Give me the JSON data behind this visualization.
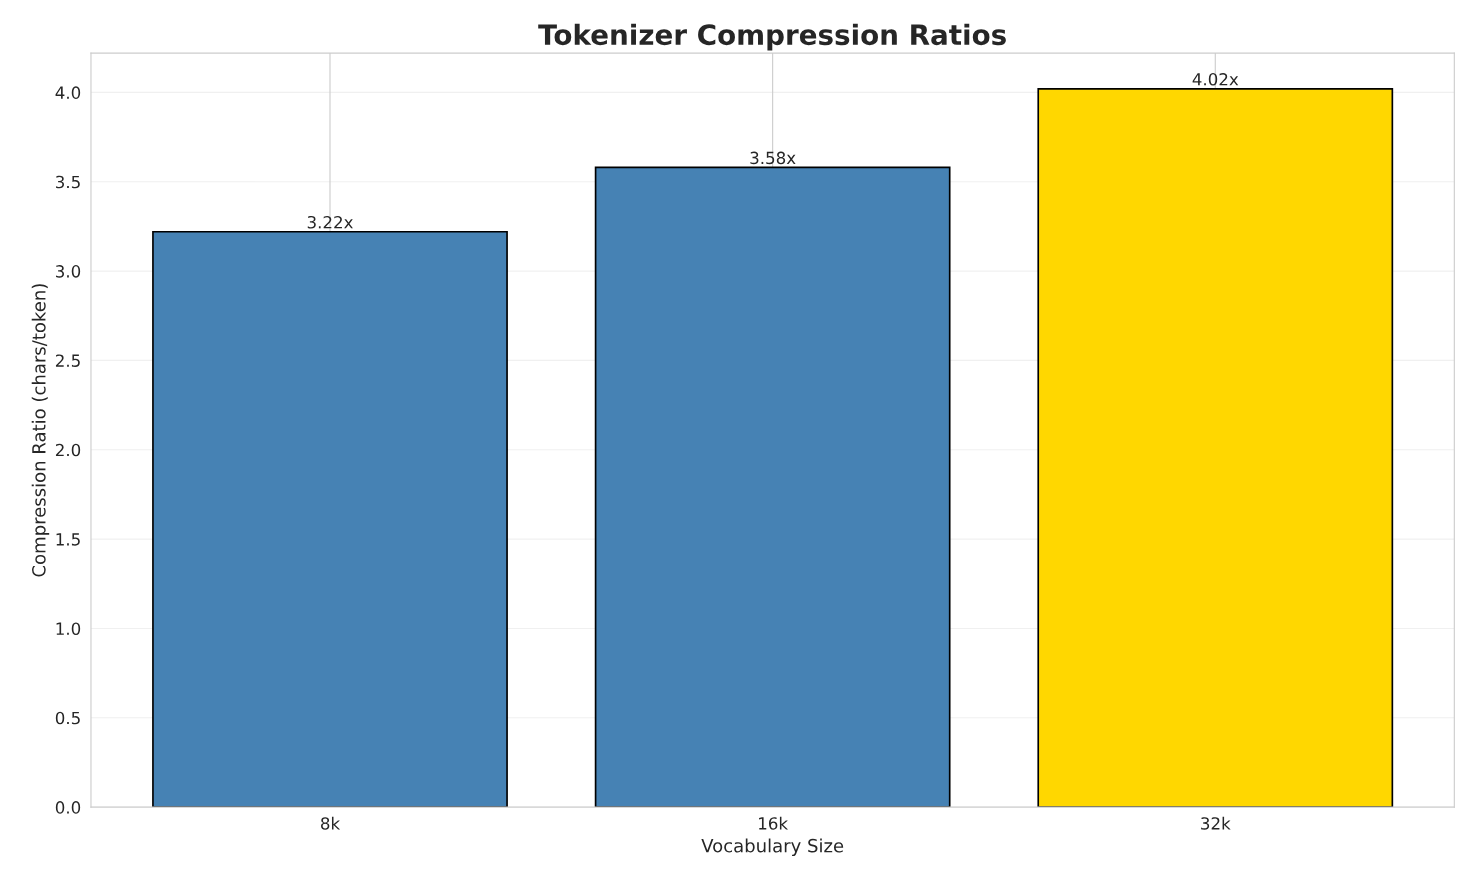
{
  "chart_data": {
    "type": "bar",
    "title": "Tokenizer Compression Ratios",
    "xlabel": "Vocabulary Size",
    "ylabel": "Compression Ratio (chars/token)",
    "categories": [
      "8k",
      "16k",
      "32k"
    ],
    "values": [
      3.22,
      3.58,
      4.02
    ],
    "colors": [
      "#4682b4",
      "#4682b4",
      "#ffd700"
    ],
    "value_labels": [
      "3.22x",
      "3.58x",
      "4.02x"
    ],
    "ylim": [
      0,
      4.22
    ],
    "yticks": [
      {
        "value": 0,
        "label": "0.0"
      },
      0.5,
      {
        "value": 1,
        "label": "1.0"
      },
      1.5,
      {
        "value": 2,
        "label": "2.0"
      },
      2.5,
      {
        "value": 3,
        "label": "3.0"
      },
      3.5,
      {
        "value": 4,
        "label": "4.0"
      }
    ],
    "grid": true
  }
}
